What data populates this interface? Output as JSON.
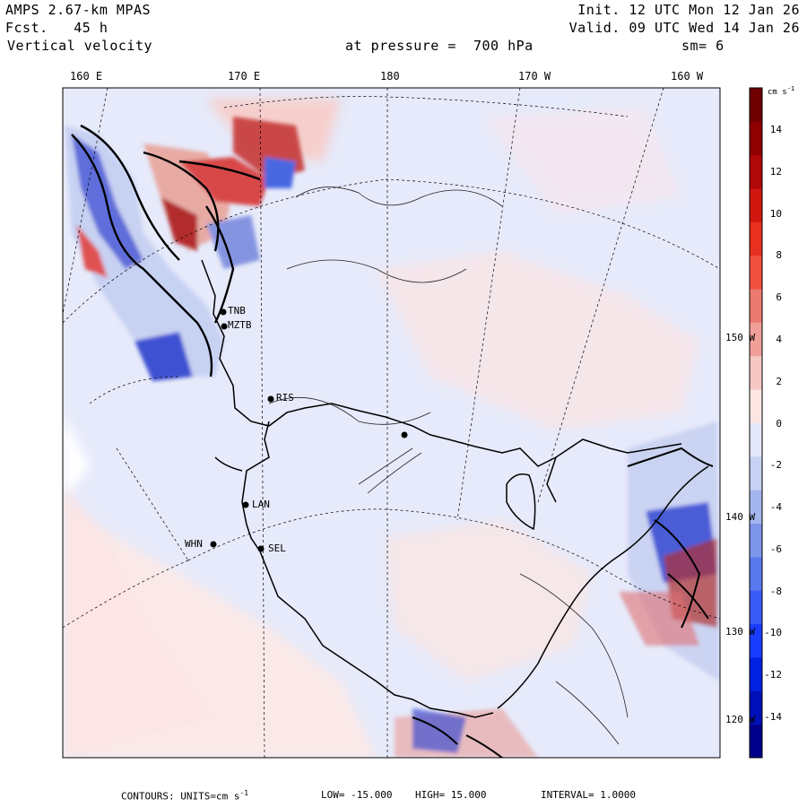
{
  "header": {
    "model": "AMPS 2.67-km MPAS",
    "forecast": "Fcst.   45 h",
    "field": "Vertical velocity",
    "init": "Init. 12 UTC Mon 12 Jan 26",
    "valid": "Valid. 09 UTC Wed 14 Jan 26",
    "level": "at pressure =  700 hPa",
    "smooth": "sm= 6"
  },
  "longitude_labels": [
    "160 E",
    "170 E",
    "180",
    "170 W",
    "160 W"
  ],
  "latitude_labels": [
    "150 W",
    "140 W",
    "130 W",
    "120 W"
  ],
  "stations": [
    {
      "code": "TNB"
    },
    {
      "code": "MZTB"
    },
    {
      "code": "RIS"
    },
    {
      "code": "LAN"
    },
    {
      "code": "WHN"
    },
    {
      "code": "SEL"
    }
  ],
  "colorbar": {
    "units_text": "cm s",
    "units_exp": "-1",
    "ticks": [
      "14",
      "12",
      "10",
      "8",
      "6",
      "4",
      "2",
      "0",
      "-2",
      "-4",
      "-6",
      "-8",
      "-10",
      "-12",
      "-14"
    ],
    "colors": [
      "#00008b",
      "#0010b8",
      "#0022e0",
      "#1a3cff",
      "#3a5af8",
      "#5a78ee",
      "#7e96ea",
      "#a5b6ee",
      "#c8d2f4",
      "#e4e8fb",
      "#fbe6e4",
      "#f6c8c4",
      "#f0a098",
      "#ec7a70",
      "#f05040",
      "#e83020",
      "#d01810",
      "#b00808",
      "#900000",
      "#700000"
    ]
  },
  "footer": {
    "contours": "CONTOURS:  UNITS=cm s",
    "units_exp": "-1",
    "low": "LOW= -15.000",
    "high": "HIGH=  15.000",
    "interval": "INTERVAL=   1.0000"
  }
}
